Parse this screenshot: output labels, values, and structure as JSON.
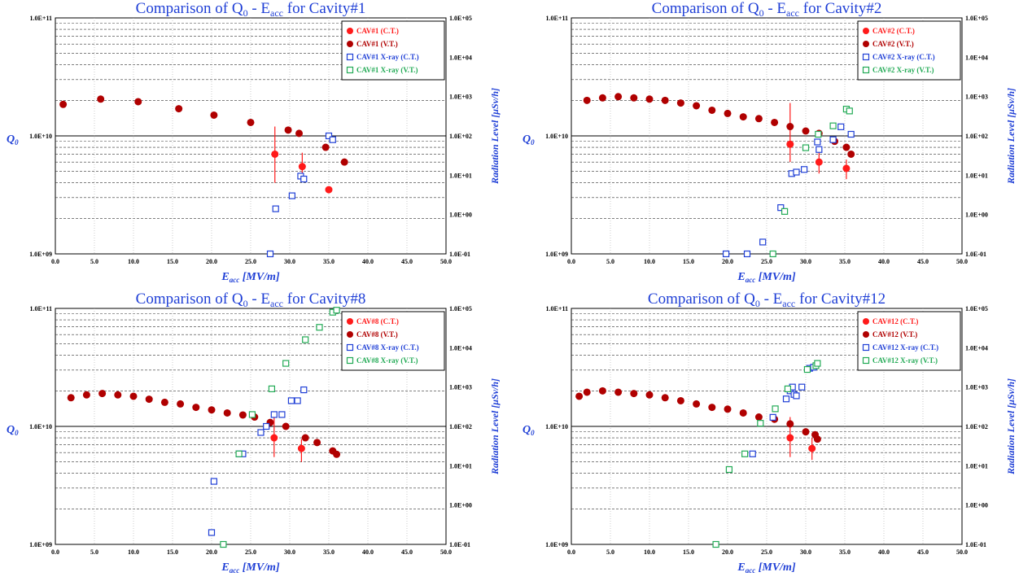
{
  "colors": {
    "ct": "#ff1a1a",
    "vt": "#b00000",
    "xray_ct": "#1f3fd6",
    "xray_vt": "#22aa55",
    "title": "#1f3fd6",
    "axis_label": "#1f3fd6"
  },
  "chart_data": [
    {
      "type": "scatter",
      "title_main": "Comparison of Q",
      "title_sub": "0",
      "title_rest": " - E",
      "title_sub2": "acc",
      "title_tail": " for Cavity#1",
      "xlabel": "E",
      "xlabel_sub": "acc",
      "xlabel_unit": " [MV/m]",
      "ylabel": "Q",
      "ylabel_sub": "0",
      "y2label": "Radiation Level [μSv/h]",
      "xlim": [
        0,
        50
      ],
      "ylim_log": [
        1000000000.0,
        100000000000.0
      ],
      "y2lim_log": [
        0.1,
        100000
      ],
      "x_ticks": [
        "0.0",
        "5.0",
        "10.0",
        "15.0",
        "20.0",
        "25.0",
        "30.0",
        "35.0",
        "40.0",
        "45.0",
        "50.0"
      ],
      "y_ticks": [
        "1.0E+09",
        "1.0E+10",
        "1.0E+11"
      ],
      "y2_ticks": [
        "1.0E-01",
        "1.0E+00",
        "1.0E+01",
        "1.0E+02",
        "1.0E+03",
        "1.0E+04",
        "1.0E+05"
      ],
      "legend": [
        "CAV#1 (C.T.)",
        "CAV#1 (V.T.)",
        "CAV#1 X-ray (C.T.)",
        "CAV#1 X-ray (V.T.)"
      ],
      "series": [
        {
          "name": "CAV#1 (C.T.)",
          "marker": "circle",
          "color": "ct",
          "x": [
            28.1,
            31.6,
            35.0
          ],
          "y": [
            7000000000.0,
            5500000000.0,
            3500000000.0
          ],
          "err": [
            [
              4000000000.0,
              12000000000.0
            ],
            [
              4200000000.0,
              7200000000.0
            ],
            null
          ]
        },
        {
          "name": "CAV#1 (V.T.)",
          "marker": "circle",
          "color": "vt",
          "x": [
            1.0,
            5.8,
            10.6,
            15.8,
            20.3,
            25.0,
            29.8,
            31.2,
            34.6,
            37.0
          ],
          "y": [
            18500000000.0,
            20500000000.0,
            19500000000.0,
            17000000000.0,
            15000000000.0,
            13000000000.0,
            11200000000.0,
            10500000000.0,
            8000000000.0,
            6000000000.0
          ]
        },
        {
          "name": "CAV#1 X-ray (C.T.)",
          "marker": "square",
          "color": "xray_ct",
          "x": [
            27.5,
            28.2,
            30.3,
            31.4,
            31.8,
            35.0,
            35.5
          ],
          "y2": [
            0.1,
            1.4,
            3.0,
            9.5,
            8.0,
            100,
            80
          ]
        },
        {
          "name": "CAV#1 X-ray (V.T.)",
          "marker": "square",
          "color": "xray_vt",
          "x": [],
          "y2": []
        }
      ]
    },
    {
      "type": "scatter",
      "title_main": "Comparison of Q",
      "title_sub": "0",
      "title_rest": " - E",
      "title_sub2": "acc",
      "title_tail": " for Cavity#2",
      "xlabel": "E",
      "xlabel_sub": "acc",
      "xlabel_unit": " [MV/m]",
      "ylabel": "Q",
      "ylabel_sub": "0",
      "y2label": "Radiation Level [μSv/h]",
      "xlim": [
        0,
        50
      ],
      "ylim_log": [
        1000000000.0,
        100000000000.0
      ],
      "y2lim_log": [
        0.1,
        100000
      ],
      "x_ticks": [
        "0.0",
        "5.0",
        "10.0",
        "15.0",
        "20.0",
        "25.0",
        "30.0",
        "35.0",
        "40.0",
        "45.0",
        "50.0"
      ],
      "y_ticks": [
        "1.0E+09",
        "1.0E+10",
        "1.0E+11"
      ],
      "y2_ticks": [
        "1.0E-01",
        "1.0E+00",
        "1.0E+01",
        "1.0E+02",
        "1.0E+03",
        "1.0E+04",
        "1.0E+05"
      ],
      "legend": [
        "CAV#2 (C.T.)",
        "CAV#2 (V.T.)",
        "CAV#2 X-ray (C.T.)",
        "CAV#2 X-ray (V.T.)"
      ],
      "series": [
        {
          "name": "CAV#2 (C.T.)",
          "marker": "circle",
          "color": "ct",
          "x": [
            28.0,
            31.7,
            35.2
          ],
          "y": [
            8500000000.0,
            6000000000.0,
            5300000000.0
          ],
          "err": [
            [
              6000000000.0,
              19000000000.0
            ],
            [
              4800000000.0,
              7200000000.0
            ],
            [
              4300000000.0,
              6300000000.0
            ]
          ]
        },
        {
          "name": "CAV#2 (V.T.)",
          "marker": "circle",
          "color": "vt",
          "x": [
            2.0,
            4.0,
            6.0,
            8.0,
            10.0,
            12.0,
            14.0,
            16.0,
            18.0,
            20.0,
            22.0,
            24.0,
            26.0,
            28.0,
            30.0,
            31.7,
            33.7,
            35.2,
            35.8
          ],
          "y": [
            20000000000.0,
            21000000000.0,
            21500000000.0,
            21000000000.0,
            20500000000.0,
            20000000000.0,
            19000000000.0,
            18000000000.0,
            16500000000.0,
            15500000000.0,
            14500000000.0,
            14000000000.0,
            13000000000.0,
            12000000000.0,
            11000000000.0,
            10500000000.0,
            9000000000.0,
            8000000000.0,
            7000000000.0
          ]
        },
        {
          "name": "CAV#2 X-ray (C.T.)",
          "marker": "square",
          "color": "xray_ct",
          "x": [
            19.8,
            22.5,
            24.5,
            26.8,
            28.2,
            28.8,
            29.8,
            31.5,
            31.7,
            33.5,
            34.5,
            35.8
          ],
          "y2": [
            0.1,
            0.1,
            0.2,
            1.5,
            11,
            12,
            14,
            70,
            45,
            80,
            170,
            110
          ]
        },
        {
          "name": "CAV#2 X-ray (V.T.)",
          "marker": "square",
          "color": "xray_vt",
          "x": [
            25.8,
            27.3,
            30.0,
            31.6,
            33.5,
            35.2,
            35.6
          ],
          "y2": [
            0.1,
            1.2,
            50,
            110,
            180,
            480,
            430
          ]
        }
      ]
    },
    {
      "type": "scatter",
      "title_main": "Comparison of Q",
      "title_sub": "0",
      "title_rest": " - E",
      "title_sub2": "acc",
      "title_tail": " for Cavity#8",
      "xlabel": "E",
      "xlabel_sub": "acc",
      "xlabel_unit": " [MV/m]",
      "ylabel": "Q",
      "ylabel_sub": "0",
      "y2label": "Radiation Level [μSv/h]",
      "xlim": [
        0,
        50
      ],
      "ylim_log": [
        1000000000.0,
        100000000000.0
      ],
      "y2lim_log": [
        0.1,
        100000
      ],
      "x_ticks": [
        "0.0",
        "5.0",
        "10.0",
        "15.0",
        "20.0",
        "25.0",
        "30.0",
        "35.0",
        "40.0",
        "45.0",
        "50.0"
      ],
      "y_ticks": [
        "1.0E+09",
        "1.0E+10",
        "1.0E+11"
      ],
      "y2_ticks": [
        "1.0E-01",
        "1.0E+00",
        "1.0E+01",
        "1.0E+02",
        "1.0E+03",
        "1.0E+04",
        "1.0E+05"
      ],
      "legend": [
        "CAV#8 (C.T.)",
        "CAV#8 (V.T.)",
        "CAV#8 X-ray (C.T.)",
        "CAV#8 X-ray (V.T.)"
      ],
      "series": [
        {
          "name": "CAV#8 (C.T.)",
          "marker": "circle",
          "color": "ct",
          "x": [
            28.0,
            31.5
          ],
          "y": [
            8000000000.0,
            6500000000.0
          ],
          "err": [
            [
              5500000000.0,
              12000000000.0
            ],
            [
              5000000000.0,
              7800000000.0
            ]
          ]
        },
        {
          "name": "CAV#8 (V.T.)",
          "marker": "circle",
          "color": "vt",
          "x": [
            2.0,
            4.0,
            6.0,
            8.0,
            10.0,
            12.0,
            14.0,
            16.0,
            18.0,
            20.0,
            22.0,
            24.0,
            25.5,
            27.5,
            29.5,
            32.0,
            33.5,
            35.5,
            36.0
          ],
          "y": [
            17500000000.0,
            18500000000.0,
            19000000000.0,
            18500000000.0,
            18000000000.0,
            17000000000.0,
            16000000000.0,
            15500000000.0,
            14500000000.0,
            13800000000.0,
            13000000000.0,
            12500000000.0,
            12000000000.0,
            10800000000.0,
            10000000000.0,
            8000000000.0,
            7300000000.0,
            6200000000.0,
            5800000000.0
          ]
        },
        {
          "name": "CAV#8 X-ray (C.T.)",
          "marker": "square",
          "color": "xray_ct",
          "x": [
            20.0,
            20.3,
            23.5,
            24.0,
            26.3,
            27.0,
            28.0,
            29.0,
            30.2,
            31.0,
            31.8
          ],
          "y2": [
            0.2,
            4,
            20,
            20,
            70,
            100,
            200,
            200,
            450,
            450,
            850
          ]
        },
        {
          "name": "CAV#8 X-ray (V.T.)",
          "marker": "square",
          "color": "xray_vt",
          "x": [
            21.5,
            23.5,
            25.2,
            27.7,
            29.5,
            32.0,
            33.8,
            35.5,
            36.0
          ],
          "y2": [
            0.1,
            20,
            200,
            900,
            4000,
            16000,
            33000,
            80000,
            90000
          ]
        }
      ]
    },
    {
      "type": "scatter",
      "title_main": "Comparison of Q",
      "title_sub": "0",
      "title_rest": " - E",
      "title_sub2": "acc",
      "title_tail": " for Cavity#12",
      "xlabel": "E",
      "xlabel_sub": "acc",
      "xlabel_unit": " [MV/m]",
      "ylabel": "Q",
      "ylabel_sub": "0",
      "y2label": "Radiation Level [μSv/h]",
      "xlim": [
        0,
        50
      ],
      "ylim_log": [
        1000000000.0,
        100000000000.0
      ],
      "y2lim_log": [
        0.1,
        100000
      ],
      "x_ticks": [
        "0.0",
        "5.0",
        "10.0",
        "15.0",
        "20.0",
        "25.0",
        "30.0",
        "35.0",
        "40.0",
        "45.0",
        "50.0"
      ],
      "y_ticks": [
        "1.0E+09",
        "1.0E+10",
        "1.0E+11"
      ],
      "y2_ticks": [
        "1.0E-01",
        "1.0E+00",
        "1.0E+01",
        "1.0E+02",
        "1.0E+03",
        "1.0E+04",
        "1.0E+05"
      ],
      "legend": [
        "CAV#12 (C.T.)",
        "CAV#12 (V.T.)",
        "CAV#12 X-ray (C.T.)",
        "CAV#12 X-ray (V.T.)"
      ],
      "series": [
        {
          "name": "CAV#12 (C.T.)",
          "marker": "circle",
          "color": "ct",
          "x": [
            28.0,
            30.8
          ],
          "y": [
            8000000000.0,
            6500000000.0
          ],
          "err": [
            [
              5500000000.0,
              12000000000.0
            ],
            [
              5200000000.0,
              8000000000.0
            ]
          ]
        },
        {
          "name": "CAV#12 (V.T.)",
          "marker": "circle",
          "color": "vt",
          "x": [
            1.0,
            2.0,
            4.0,
            6.0,
            8.0,
            10.0,
            12.0,
            14.0,
            16.0,
            18.0,
            20.0,
            22.0,
            24.0,
            26.0,
            28.0,
            30.0,
            31.2,
            31.5
          ],
          "y": [
            18000000000.0,
            19500000000.0,
            20000000000.0,
            19500000000.0,
            19000000000.0,
            18500000000.0,
            17500000000.0,
            16500000000.0,
            15500000000.0,
            14500000000.0,
            14000000000.0,
            13000000000.0,
            12000000000.0,
            11500000000.0,
            10500000000.0,
            9000000000.0,
            8500000000.0,
            7800000000.0
          ]
        },
        {
          "name": "CAV#12 X-ray (C.T.)",
          "marker": "square",
          "color": "xray_ct",
          "x": [
            23.2,
            25.8,
            27.5,
            28.0,
            28.3,
            28.5,
            28.8,
            29.5,
            30.5,
            31.0
          ],
          "y2": [
            20,
            170,
            500,
            800,
            1000,
            650,
            600,
            1000,
            3000,
            3200
          ]
        },
        {
          "name": "CAV#12 X-ray (V.T.)",
          "marker": "square",
          "color": "xray_vt",
          "x": [
            18.5,
            20.2,
            22.2,
            24.2,
            26.1,
            27.7,
            30.2,
            31.3,
            31.5
          ],
          "y2": [
            0.1,
            8,
            20,
            120,
            280,
            900,
            2800,
            3500,
            4000
          ]
        }
      ]
    }
  ]
}
